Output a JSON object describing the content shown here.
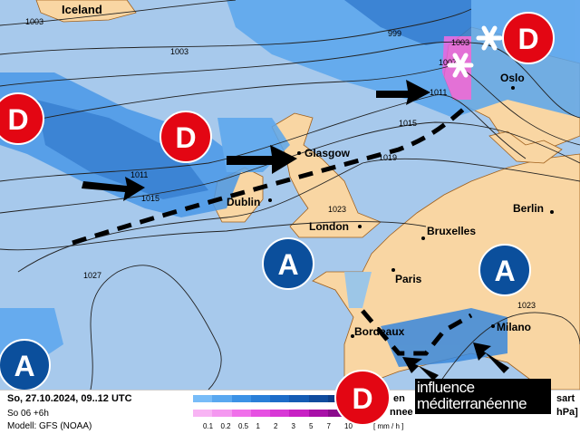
{
  "colors": {
    "sea": "#a7c9ec",
    "land": "#f9d6a3",
    "low": "#e30613",
    "high": "#0b4f9c",
    "precip_light": "#6cb4f4",
    "precip_dark": "#1060c0",
    "snow": "#e060e0"
  },
  "cities": [
    {
      "name": "Iceland"
    },
    {
      "name": "Oslo"
    },
    {
      "name": "Glasgow"
    },
    {
      "name": "Dublin"
    },
    {
      "name": "London"
    },
    {
      "name": "Bruxelles"
    },
    {
      "name": "Berlin"
    },
    {
      "name": "Paris"
    },
    {
      "name": "Milano"
    },
    {
      "name": "Bordeaux"
    }
  ],
  "isobars": [
    "1003",
    "1003",
    "999",
    "1003",
    "1007",
    "1011",
    "1015",
    "1019",
    "1011",
    "1015",
    "1023",
    "1027",
    "1023"
  ],
  "pressure_centers": {
    "low_label": "D",
    "high_label": "A"
  },
  "annotation": "influence méditerranéenne",
  "legend": {
    "date": "So, 27.10.2024, 09..12 UTC",
    "run": "So 06 +6h",
    "model": "Modell: GFS (NOAA)",
    "rain_label_partial": "en",
    "snow_label_partial": "nnee",
    "right_top_partial": "sart",
    "right_bottom_partial": "hPa]",
    "unit": "[ mm / h ]",
    "ticks": [
      "0.1",
      "0.2",
      "0.5",
      "1",
      "2",
      "3",
      "5",
      "7",
      "10"
    ],
    "rain_colors": [
      "#78bcf8",
      "#5aa8f0",
      "#3c92e6",
      "#2a7fd8",
      "#1d6cc8",
      "#155cb4",
      "#104c9e",
      "#0c3e88"
    ],
    "snow_colors": [
      "#f8b4f4",
      "#f498f0",
      "#f070ea",
      "#e650e2",
      "#d838d6",
      "#c820c4",
      "#a810a8",
      "#8a0a8c"
    ]
  }
}
